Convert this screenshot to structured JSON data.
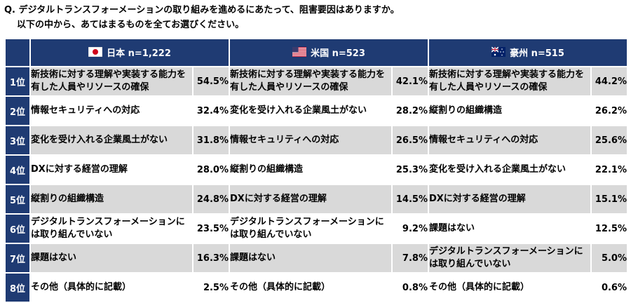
{
  "question": {
    "line1": "Q. デジタルトランスフォーメーションの取り組みを進めるにあたって、阻害要因はありますか。",
    "line2": "以下の中から、あてはまるものを全てお選びください。"
  },
  "chart_data": {
    "type": "table",
    "columns": [
      {
        "label": "日本 n=1,222",
        "flag": "japan-flag-icon"
      },
      {
        "label": "米国 n=523",
        "flag": "usa-flag-icon"
      },
      {
        "label": "豪州 n=515",
        "flag": "australia-flag-icon"
      }
    ],
    "rows": [
      {
        "rank": "1位",
        "cells": [
          {
            "item": "新技術に対する理解や実装する能力を有した人員やリソースの確保",
            "pct": "54.5%"
          },
          {
            "item": "新技術に対する理解や実装する能力を有した人員やリソースの確保",
            "pct": "42.1%"
          },
          {
            "item": "新技術に対する理解や実装する能力を有した人員やリソースの確保",
            "pct": "44.2%"
          }
        ]
      },
      {
        "rank": "2位",
        "cells": [
          {
            "item": "情報セキュリティへの対応",
            "pct": "32.4%"
          },
          {
            "item": "変化を受け入れる企業風土がない",
            "pct": "28.2%"
          },
          {
            "item": "縦割りの組織構造",
            "pct": "26.2%"
          }
        ]
      },
      {
        "rank": "3位",
        "cells": [
          {
            "item": "変化を受け入れる企業風土がない",
            "pct": "31.8%"
          },
          {
            "item": "情報セキュリティへの対応",
            "pct": "26.5%"
          },
          {
            "item": "情報セキュリティへの対応",
            "pct": "25.6%"
          }
        ]
      },
      {
        "rank": "4位",
        "cells": [
          {
            "item": "DXに対する経営の理解",
            "pct": "28.0%"
          },
          {
            "item": "縦割りの組織構造",
            "pct": "25.3%"
          },
          {
            "item": "変化を受け入れる企業風土がない",
            "pct": "22.1%"
          }
        ]
      },
      {
        "rank": "5位",
        "cells": [
          {
            "item": "縦割りの組織構造",
            "pct": "24.8%"
          },
          {
            "item": "DXに対する経営の理解",
            "pct": "14.5%"
          },
          {
            "item": "DXに対する経営の理解",
            "pct": "15.1%"
          }
        ]
      },
      {
        "rank": "6位",
        "cells": [
          {
            "item": "デジタルトランスフォーメーションには取り組んでいない",
            "pct": "23.5%"
          },
          {
            "item": "デジタルトランスフォーメーションには取り組んでいない",
            "pct": "9.2%"
          },
          {
            "item": "課題はない",
            "pct": "12.5%"
          }
        ]
      },
      {
        "rank": "7位",
        "cells": [
          {
            "item": "課題はない",
            "pct": "16.3%"
          },
          {
            "item": "課題はない",
            "pct": "7.8%"
          },
          {
            "item": "デジタルトランスフォーメーションには取り組んでいない",
            "pct": "5.0%"
          }
        ]
      },
      {
        "rank": "8位",
        "cells": [
          {
            "item": "その他（具体的に記載）",
            "pct": "2.5%"
          },
          {
            "item": "その他（具体的に記載）",
            "pct": "0.8%"
          },
          {
            "item": "その他（具体的に記載）",
            "pct": "0.6%"
          }
        ]
      }
    ]
  },
  "colors": {
    "header_bg": "#1f3b73",
    "stripe": "#d9d9d9"
  }
}
